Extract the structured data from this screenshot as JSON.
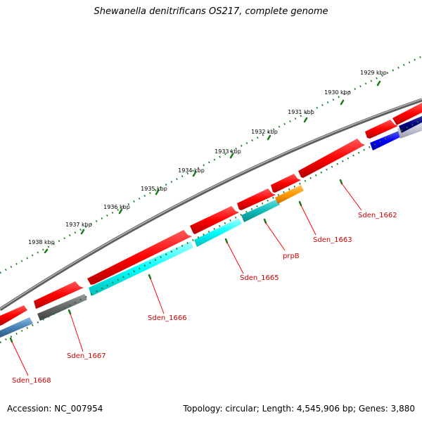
{
  "title": "Shewanella denitrificans OS217, complete genome",
  "footer": {
    "accession": "Accession: NC_007954",
    "summary": "Topology: circular; Length: 4,545,906 bp; Genes: 3,880"
  },
  "colors": {
    "backbone": "#7a7a7a",
    "tick": "#1a7a1a",
    "forward_gene": "#ff0000",
    "label": "#cc0000"
  },
  "ruler_labels": [
    "1929 kbp",
    "1930 kbp",
    "1931 kbp",
    "1932 kbp",
    "1933 kbp",
    "1934 kbp",
    "1935 kbp",
    "1936 kbp",
    "1937 kbp",
    "1938 kbp"
  ],
  "gene_labels": [
    "Sden_1662",
    "Sden_1663",
    "prpB",
    "Sden_1665",
    "Sden_1666",
    "Sden_1667",
    "Sden_1668"
  ]
}
